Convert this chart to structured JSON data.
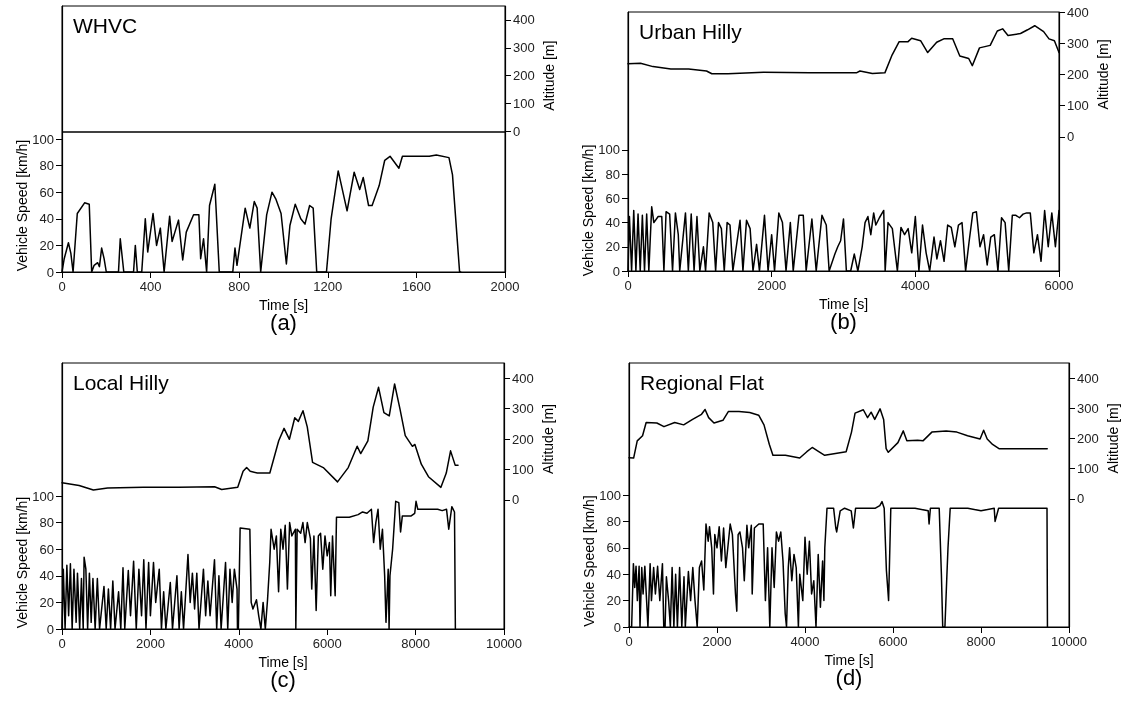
{
  "chart_data": [
    {
      "type": "line",
      "title": "WHVC",
      "xlabel": "Time [s]",
      "ylabel": "Vehicle Speed [km/h]",
      "y2label": "Altitude [m]",
      "annotations": [
        "(a)"
      ],
      "marker": "none",
      "xlim": [
        0,
        2000
      ],
      "xticks": [
        0,
        400,
        800,
        1200,
        1600,
        2000
      ],
      "ylim": [
        0,
        200
      ],
      "yticks": [
        0,
        20,
        40,
        60,
        80,
        100
      ],
      "y2lim": [
        -505,
        450
      ],
      "y2ticks": [
        0,
        100,
        200,
        300,
        400
      ],
      "ref_lines": [
        {
          "axis": "y2",
          "value": 0,
          "color": "#000000"
        }
      ],
      "series": [
        {
          "color": "#000000",
          "axis": "y",
          "x": [
            0,
            10,
            29,
            40,
            50,
            69,
            102,
            123,
            134,
            145,
            161,
            169,
            179,
            190,
            200,
            255,
            263,
            279,
            323,
            331,
            340,
            360,
            376,
            387,
            411,
            427,
            444,
            461,
            486,
            497,
            526,
            545,
            561,
            594,
            618,
            626,
            639,
            653,
            666,
            690,
            710,
            771,
            781,
            790,
            827,
            848,
            868,
            881,
            897,
            924,
            948,
            965,
            989,
            1013,
            1029,
            1053,
            1078,
            1097,
            1118,
            1134,
            1150,
            1194,
            1215,
            1247,
            1287,
            1319,
            1344,
            1360,
            1384,
            1400,
            1432,
            1457,
            1481,
            1521,
            1537,
            1658,
            1690,
            1747,
            1763,
            1795,
            1800
          ],
          "values": [
            0,
            10,
            22,
            14,
            0,
            44,
            52,
            51,
            0,
            5,
            7,
            4,
            18,
            10,
            0,
            0,
            25,
            0,
            0,
            20,
            0,
            0,
            40,
            15,
            44,
            20,
            33,
            0,
            42,
            23,
            39,
            9,
            30,
            43,
            43,
            10,
            25,
            0,
            50,
            66,
            0,
            0,
            18,
            5,
            48,
            33,
            53,
            48,
            0,
            43,
            60,
            55,
            44,
            6,
            35,
            51,
            40,
            36,
            50,
            48,
            0,
            0,
            40,
            76,
            46,
            75,
            62,
            71,
            50,
            50,
            65,
            84,
            87,
            78,
            87,
            87,
            88,
            86,
            73,
            0,
            0
          ]
        }
      ]
    },
    {
      "type": "line",
      "title": "Urban Hilly",
      "xlabel": "Time [s]",
      "ylabel": "Vehicle Speed [km/h]",
      "y2label": "Altitude [m]",
      "annotations": [
        "(b)"
      ],
      "marker": "none",
      "xlim": [
        0,
        6000
      ],
      "xticks": [
        0,
        2000,
        4000,
        6000
      ],
      "ylim": [
        0,
        214
      ],
      "yticks": [
        0,
        20,
        40,
        60,
        80,
        100
      ],
      "y2lim": [
        -430,
        400
      ],
      "y2ticks": [
        0,
        100,
        200,
        300,
        400
      ],
      "series": [
        {
          "color": "#000000",
          "axis": "y2",
          "x": [
            0,
            174,
            348,
            596,
            844,
            1093,
            1167,
            1391,
            1887,
            2533,
            3179,
            3229,
            3402,
            3576,
            3676,
            3775,
            3899,
            3949,
            4073,
            4172,
            4297,
            4396,
            4520,
            4619,
            4743,
            4793,
            4893,
            5042,
            5141,
            5215,
            5290,
            5464,
            5563,
            5662,
            5786,
            5861,
            5936,
            6000
          ],
          "values": [
            234,
            236,
            225,
            217,
            217,
            211,
            202,
            202,
            207,
            205,
            205,
            211,
            203,
            205,
            262,
            305,
            305,
            316,
            308,
            270,
            303,
            314,
            314,
            259,
            251,
            228,
            285,
            293,
            339,
            346,
            325,
            331,
            343,
            356,
            337,
            314,
            308,
            270
          ]
        },
        {
          "color": "#000000",
          "axis": "y",
          "x": [
            0,
            20,
            50,
            80,
            110,
            140,
            170,
            200,
            230,
            260,
            290,
            330,
            360,
            420,
            470,
            500,
            530,
            580,
            620,
            660,
            700,
            720,
            800,
            840,
            880,
            920,
            960,
            1000,
            1050,
            1080,
            1130,
            1180,
            1220,
            1260,
            1300,
            1340,
            1380,
            1420,
            1460,
            1560,
            1600,
            1650,
            1700,
            1740,
            1790,
            1830,
            1900,
            1950,
            2000,
            2040,
            2100,
            2150,
            2200,
            2260,
            2300,
            2380,
            2440,
            2480,
            2560,
            2620,
            2700,
            2760,
            2800,
            2880,
            2920,
            2960,
            3000,
            3040,
            3100,
            3150,
            3200,
            3260,
            3300,
            3340,
            3380,
            3420,
            3450,
            3500,
            3560,
            3580,
            3620,
            3680,
            3750,
            3800,
            3850,
            3900,
            3950,
            4000,
            4050,
            4100,
            4150,
            4200,
            4260,
            4300,
            4350,
            4400,
            4450,
            4500,
            4550,
            4600,
            4650,
            4700,
            4750,
            4800,
            4850,
            4900,
            4950,
            5000,
            5050,
            5100,
            5150,
            5200,
            5250,
            5300,
            5350,
            5400,
            5450,
            5500,
            5550,
            5600,
            5650,
            5700,
            5750,
            5800,
            5850,
            5900,
            5950,
            6000
          ],
          "values": [
            0,
            45,
            0,
            50,
            0,
            47,
            0,
            46,
            0,
            47,
            0,
            53,
            40,
            45,
            45,
            0,
            49,
            47,
            0,
            48,
            30,
            0,
            48,
            0,
            47,
            0,
            45,
            0,
            20,
            0,
            48,
            40,
            0,
            40,
            35,
            0,
            40,
            38,
            0,
            42,
            0,
            42,
            35,
            0,
            22,
            0,
            46,
            0,
            30,
            0,
            48,
            40,
            0,
            40,
            0,
            46,
            46,
            0,
            43,
            0,
            46,
            38,
            0,
            14,
            20,
            25,
            43,
            0,
            0,
            14,
            0,
            20,
            40,
            45,
            30,
            48,
            38,
            44,
            50,
            0,
            40,
            35,
            0,
            36,
            30,
            35,
            15,
            45,
            0,
            38,
            15,
            0,
            28,
            10,
            25,
            8,
            38,
            36,
            20,
            38,
            40,
            0,
            25,
            48,
            49,
            20,
            30,
            5,
            28,
            30,
            0,
            44,
            40,
            0,
            46,
            46,
            44,
            47,
            48,
            48,
            15,
            30,
            8,
            50,
            20,
            48,
            20,
            50
          ]
        }
      ]
    },
    {
      "type": "line",
      "title": "Local Hilly",
      "xlabel": "Time [s]",
      "ylabel": "Vehicle Speed [km/h]",
      "y2label": "Altitude [m]",
      "annotations": [
        "(c)"
      ],
      "marker": "none",
      "xlim": [
        0,
        10000
      ],
      "xticks": [
        0,
        2000,
        4000,
        6000,
        8000,
        10000
      ],
      "ylim": [
        0,
        200
      ],
      "yticks": [
        0,
        20,
        40,
        60,
        80,
        100
      ],
      "y2lim": [
        -425,
        450
      ],
      "y2ticks": [
        0,
        100,
        200,
        300,
        400
      ],
      "series": [
        {
          "color": "#000000",
          "axis": "y2",
          "x": [
            0,
            387,
            710,
            1032,
            1839,
            2645,
            3452,
            3613,
            3976,
            4097,
            4177,
            4258,
            4419,
            4702,
            4903,
            5024,
            5145,
            5266,
            5347,
            5452,
            5549,
            5669,
            5911,
            6234,
            6476,
            6678,
            6758,
            6920,
            7041,
            7162,
            7283,
            7404,
            7525,
            7646,
            7766,
            7928,
            7984,
            8129,
            8291,
            8573,
            8694,
            8791,
            8895,
            8960
          ],
          "values": [
            56,
            47,
            32,
            39,
            41,
            41,
            43,
            34,
            41,
            94,
            106,
            94,
            88,
            88,
            194,
            235,
            199,
            270,
            258,
            293,
            240,
            123,
            106,
            59,
            106,
            176,
            152,
            194,
            305,
            370,
            287,
            276,
            381,
            299,
            211,
            176,
            182,
            117,
            76,
            41,
            88,
            161,
            114,
            114
          ]
        },
        {
          "color": "#000000",
          "axis": "y",
          "x": [
            0,
            30,
            70,
            110,
            150,
            190,
            230,
            270,
            320,
            350,
            400,
            440,
            480,
            500,
            540,
            580,
            620,
            660,
            700,
            750,
            800,
            850,
            950,
            1000,
            1050,
            1100,
            1150,
            1200,
            1280,
            1330,
            1380,
            1420,
            1500,
            1550,
            1620,
            1680,
            1740,
            1800,
            1850,
            1900,
            1960,
            2000,
            2070,
            2120,
            2200,
            2250,
            2300,
            2350,
            2450,
            2500,
            2600,
            2650,
            2700,
            2750,
            2850,
            2900,
            2950,
            3000,
            3050,
            3100,
            3200,
            3250,
            3300,
            3350,
            3450,
            3500,
            3550,
            3600,
            3700,
            3750,
            3800,
            3850,
            3900,
            3960,
            3970,
            3990,
            4030,
            4250,
            4280,
            4320,
            4400,
            4450,
            4500,
            4550,
            4600,
            4650,
            4700,
            4730,
            4800,
            4850,
            4900,
            4950,
            5000,
            5050,
            5100,
            5150,
            5200,
            5280,
            5290,
            5320,
            5400,
            5450,
            5500,
            5550,
            5620,
            5650,
            5700,
            5750,
            5800,
            5850,
            5900,
            5950,
            6000,
            6050,
            6080,
            6120,
            6180,
            6210,
            6500,
            6700,
            6800,
            6900,
            7000,
            7050,
            7100,
            7150,
            7200,
            7250,
            7300,
            7330,
            7380,
            7400,
            7420,
            7480,
            7550,
            7620,
            7660,
            7700,
            7900,
            7980,
            8010,
            8050,
            8500,
            8600,
            8700,
            8750,
            8820,
            8880,
            8900
          ],
          "values": [
            0,
            45,
            0,
            48,
            10,
            49,
            0,
            45,
            5,
            42,
            0,
            38,
            0,
            54,
            45,
            0,
            42,
            5,
            38,
            0,
            38,
            0,
            32,
            0,
            30,
            0,
            36,
            0,
            28,
            0,
            46,
            0,
            44,
            10,
            51,
            0,
            45,
            10,
            52,
            0,
            50,
            10,
            50,
            20,
            45,
            0,
            28,
            0,
            35,
            0,
            40,
            0,
            28,
            0,
            56,
            20,
            42,
            15,
            42,
            0,
            45,
            10,
            36,
            10,
            52,
            0,
            40,
            0,
            50,
            0,
            45,
            20,
            45,
            30,
            0,
            0,
            76,
            75,
            20,
            15,
            22,
            10,
            0,
            20,
            0,
            22,
            50,
            75,
            60,
            70,
            28,
            75,
            60,
            78,
            30,
            80,
            70,
            75,
            0,
            75,
            72,
            80,
            65,
            80,
            68,
            30,
            70,
            14,
            70,
            72,
            45,
            70,
            55,
            65,
            25,
            70,
            25,
            84,
            84,
            86,
            88,
            87,
            90,
            65,
            80,
            90,
            60,
            75,
            40,
            5,
            45,
            0,
            40,
            60,
            96,
            95,
            73,
            85,
            85,
            87,
            96,
            90,
            90,
            89,
            90,
            75,
            92,
            88,
            0
          ]
        }
      ]
    },
    {
      "type": "line",
      "title": "Regional Flat",
      "xlabel": "Time [s]",
      "ylabel": "Vehicle Speed [km/h]",
      "y2label": "Altitude [m]",
      "annotations": [
        "(d)"
      ],
      "marker": "none",
      "xlim": [
        0,
        10000
      ],
      "xticks": [
        0,
        2000,
        4000,
        6000,
        8000,
        10000
      ],
      "ylim": [
        0,
        200
      ],
      "yticks": [
        0,
        20,
        40,
        60,
        80,
        100
      ],
      "y2lim": [
        -425,
        450
      ],
      "y2ticks": [
        0,
        100,
        200,
        300,
        400
      ],
      "series": [
        {
          "color": "#000000",
          "axis": "y2",
          "x": [
            0,
            105,
            187,
            308,
            390,
            633,
            795,
            1039,
            1242,
            1445,
            1648,
            1729,
            1810,
            1932,
            2135,
            2257,
            2500,
            2744,
            2947,
            3068,
            3190,
            3271,
            3555,
            3880,
            4042,
            4164,
            4286,
            4448,
            4935,
            5057,
            5138,
            5325,
            5422,
            5503,
            5585,
            5706,
            5787,
            5844,
            5893,
            6112,
            6234,
            6315,
            6559,
            6681,
            6883,
            7208,
            7452,
            7695,
            7979,
            8060,
            8141,
            8263,
            8409,
            9505
          ],
          "values": [
            136,
            135,
            192,
            209,
            253,
            251,
            239,
            253,
            245,
            263,
            280,
            296,
            269,
            251,
            260,
            289,
            289,
            286,
            277,
            245,
            180,
            144,
            144,
            135,
            156,
            170,
            159,
            144,
            156,
            221,
            284,
            295,
            269,
            287,
            263,
            298,
            263,
            166,
            154,
            186,
            225,
            192,
            194,
            192,
            221,
            225,
            221,
            209,
            198,
            227,
            198,
            180,
            166,
            166
          ]
        },
        {
          "color": "#000000",
          "axis": "y",
          "x": [
            0,
            60,
            100,
            130,
            160,
            190,
            230,
            250,
            290,
            320,
            360,
            400,
            430,
            480,
            510,
            560,
            600,
            650,
            700,
            760,
            790,
            820,
            850,
            900,
            940,
            980,
            1020,
            1060,
            1100,
            1150,
            1200,
            1250,
            1280,
            1350,
            1400,
            1450,
            1500,
            1550,
            1600,
            1650,
            1700,
            1750,
            1800,
            1830,
            1880,
            1920,
            1950,
            2000,
            2050,
            2100,
            2150,
            2200,
            2300,
            2350,
            2420,
            2450,
            2480,
            2520,
            2580,
            2620,
            2680,
            2720,
            2780,
            2800,
            2850,
            2950,
            3050,
            3100,
            3150,
            3200,
            3250,
            3300,
            3350,
            3400,
            3450,
            3500,
            3550,
            3580,
            3620,
            3650,
            3700,
            3750,
            3800,
            3850,
            3880,
            3950,
            4000,
            4050,
            4100,
            4150,
            4200,
            4250,
            4300,
            4350,
            4400,
            4430,
            4450,
            4500,
            4650,
            4700,
            4720,
            4800,
            4900,
            5050,
            5100,
            5150,
            5600,
            5700,
            5750,
            5800,
            5850,
            5900,
            5950,
            6500,
            6800,
            6820,
            6850,
            7050,
            7100,
            7130,
            7180,
            7220,
            7250,
            7300,
            7700,
            8000,
            8300,
            8320,
            8400,
            9500,
            9510
          ],
          "values": [
            0,
            0,
            48,
            30,
            46,
            20,
            46,
            0,
            45,
            25,
            46,
            20,
            0,
            48,
            20,
            45,
            25,
            46,
            20,
            48,
            0,
            0,
            38,
            20,
            0,
            45,
            0,
            40,
            0,
            45,
            0,
            38,
            0,
            42,
            20,
            45,
            20,
            0,
            45,
            50,
            28,
            78,
            65,
            76,
            60,
            25,
            70,
            60,
            76,
            50,
            75,
            45,
            78,
            70,
            25,
            12,
            70,
            72,
            60,
            35,
            77,
            60,
            77,
            25,
            75,
            78,
            78,
            20,
            60,
            0,
            60,
            30,
            72,
            65,
            72,
            50,
            10,
            0,
            45,
            60,
            35,
            55,
            45,
            0,
            40,
            20,
            68,
            40,
            65,
            25,
            35,
            0,
            55,
            15,
            50,
            20,
            60,
            90,
            90,
            75,
            72,
            88,
            90,
            88,
            75,
            90,
            90,
            92,
            95,
            90,
            43,
            20,
            90,
            90,
            88,
            78,
            90,
            90,
            40,
            0,
            0,
            35,
            60,
            90,
            90,
            88,
            90,
            80,
            90,
            90,
            0
          ]
        }
      ]
    }
  ]
}
